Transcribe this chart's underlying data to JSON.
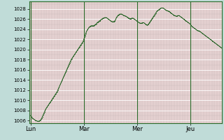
{
  "background_color": "#c0dcd8",
  "plot_bg_color": "#e4d0d0",
  "line_color": "#1a5c1a",
  "marker_color": "#1a5c1a",
  "grid_major_color": "#ffffff",
  "grid_minor_color": "#c8b8b8",
  "vline_color": "#2a6b2a",
  "spine_color": "#2a6b2a",
  "ylim": [
    1005.5,
    1029.5
  ],
  "yticks": [
    1006,
    1008,
    1010,
    1012,
    1014,
    1016,
    1018,
    1020,
    1022,
    1024,
    1026,
    1028
  ],
  "day_labels": [
    "Lun",
    "Mar",
    "Mer",
    "Jeu"
  ],
  "day_positions": [
    0,
    80,
    160,
    240
  ],
  "total_points": 320,
  "pressure_data": [
    1007.0,
    1006.9,
    1006.7,
    1006.5,
    1006.4,
    1006.3,
    1006.2,
    1006.1,
    1006.0,
    1006.0,
    1005.9,
    1005.9,
    1005.9,
    1005.9,
    1006.0,
    1006.1,
    1006.3,
    1006.5,
    1006.8,
    1007.1,
    1007.4,
    1007.7,
    1008.0,
    1008.3,
    1008.5,
    1008.7,
    1008.9,
    1009.1,
    1009.3,
    1009.5,
    1009.7,
    1009.9,
    1010.1,
    1010.3,
    1010.5,
    1010.7,
    1010.9,
    1011.1,
    1011.3,
    1011.5,
    1011.7,
    1012.0,
    1012.3,
    1012.6,
    1012.9,
    1013.2,
    1013.5,
    1013.8,
    1014.1,
    1014.4,
    1014.7,
    1015.0,
    1015.3,
    1015.6,
    1015.9,
    1016.2,
    1016.5,
    1016.8,
    1017.1,
    1017.4,
    1017.7,
    1018.0,
    1018.2,
    1018.4,
    1018.6,
    1018.8,
    1019.0,
    1019.2,
    1019.4,
    1019.6,
    1019.8,
    1020.0,
    1020.2,
    1020.4,
    1020.6,
    1020.8,
    1021.0,
    1021.2,
    1021.4,
    1021.6,
    1022.0,
    1022.4,
    1022.8,
    1023.2,
    1023.5,
    1023.8,
    1024.0,
    1024.2,
    1024.4,
    1024.5,
    1024.6,
    1024.7,
    1024.7,
    1024.7,
    1024.7,
    1024.7,
    1024.8,
    1024.9,
    1025.0,
    1025.1,
    1025.3,
    1025.4,
    1025.5,
    1025.6,
    1025.7,
    1025.8,
    1025.9,
    1026.0,
    1026.1,
    1026.2,
    1026.2,
    1026.3,
    1026.3,
    1026.3,
    1026.3,
    1026.2,
    1026.1,
    1026.0,
    1025.9,
    1025.8,
    1025.7,
    1025.6,
    1025.5,
    1025.5,
    1025.5,
    1025.5,
    1025.6,
    1025.7,
    1026.0,
    1026.3,
    1026.5,
    1026.7,
    1026.8,
    1026.9,
    1027.0,
    1027.0,
    1027.0,
    1027.0,
    1026.9,
    1026.8,
    1026.7,
    1026.7,
    1026.6,
    1026.6,
    1026.5,
    1026.4,
    1026.3,
    1026.2,
    1026.2,
    1026.1,
    1026.1,
    1026.1,
    1026.2,
    1026.2,
    1026.2,
    1026.1,
    1026.0,
    1025.9,
    1025.8,
    1025.7,
    1025.6,
    1025.5,
    1025.4,
    1025.3,
    1025.2,
    1025.2,
    1025.2,
    1025.2,
    1025.3,
    1025.3,
    1025.3,
    1025.2,
    1025.1,
    1025.0,
    1024.9,
    1024.8,
    1024.9,
    1025.0,
    1025.2,
    1025.4,
    1025.6,
    1025.8,
    1026.0,
    1026.2,
    1026.4,
    1026.6,
    1026.8,
    1027.0,
    1027.2,
    1027.4,
    1027.6,
    1027.7,
    1027.8,
    1027.9,
    1028.0,
    1028.1,
    1028.2,
    1028.2,
    1028.2,
    1028.2,
    1028.1,
    1028.0,
    1027.9,
    1027.8,
    1027.7,
    1027.7,
    1027.6,
    1027.6,
    1027.5,
    1027.4,
    1027.3,
    1027.2,
    1027.1,
    1027.0,
    1026.9,
    1026.8,
    1026.7,
    1026.7,
    1026.6,
    1026.6,
    1026.6,
    1026.7,
    1026.7,
    1026.7,
    1026.6,
    1026.5,
    1026.4,
    1026.3,
    1026.2,
    1026.1,
    1026.0,
    1025.9,
    1025.8,
    1025.7,
    1025.6,
    1025.5,
    1025.4,
    1025.3,
    1025.2,
    1025.1,
    1025.0,
    1024.8,
    1024.6,
    1024.5,
    1024.4,
    1024.3,
    1024.2,
    1024.1,
    1024.0,
    1023.9,
    1023.8,
    1023.7,
    1023.7,
    1023.7,
    1023.6,
    1023.5,
    1023.4,
    1023.3,
    1023.2,
    1023.1,
    1023.0,
    1022.9,
    1022.8,
    1022.7,
    1022.6,
    1022.5,
    1022.4,
    1022.3,
    1022.2,
    1022.1,
    1022.0,
    1021.9,
    1021.8,
    1021.7,
    1021.6,
    1021.5,
    1021.4,
    1021.3,
    1021.2,
    1021.1,
    1021.0,
    1020.9,
    1020.8,
    1020.7,
    1020.6,
    1020.5,
    1020.4,
    1020.3
  ]
}
